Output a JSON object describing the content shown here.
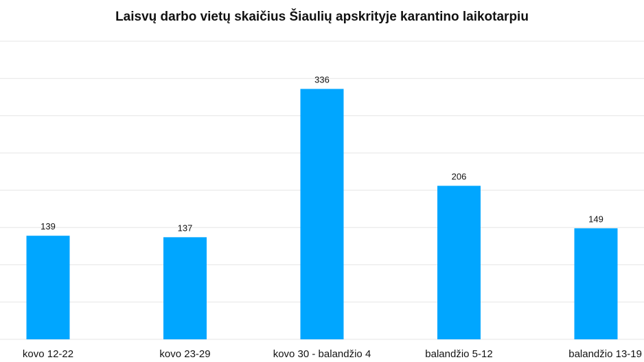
{
  "chart_data": {
    "type": "bar",
    "title": "Laisvų darbo vietų skaičius Šiaulių apskrityje karantino laikotarpiu",
    "categories": [
      "kovo 12-22",
      "kovo 23-29",
      "kovo 30 - balandžio 4",
      "balandžio 5-12",
      "balandžio 13-19"
    ],
    "values": [
      139,
      137,
      336,
      206,
      149
    ],
    "xlabel": "",
    "ylabel": "",
    "ylim": [
      0,
      400
    ],
    "grid": true,
    "legend": "none",
    "colors": {
      "bar": "#00a6ff",
      "grid": "#e6e6e6"
    }
  }
}
